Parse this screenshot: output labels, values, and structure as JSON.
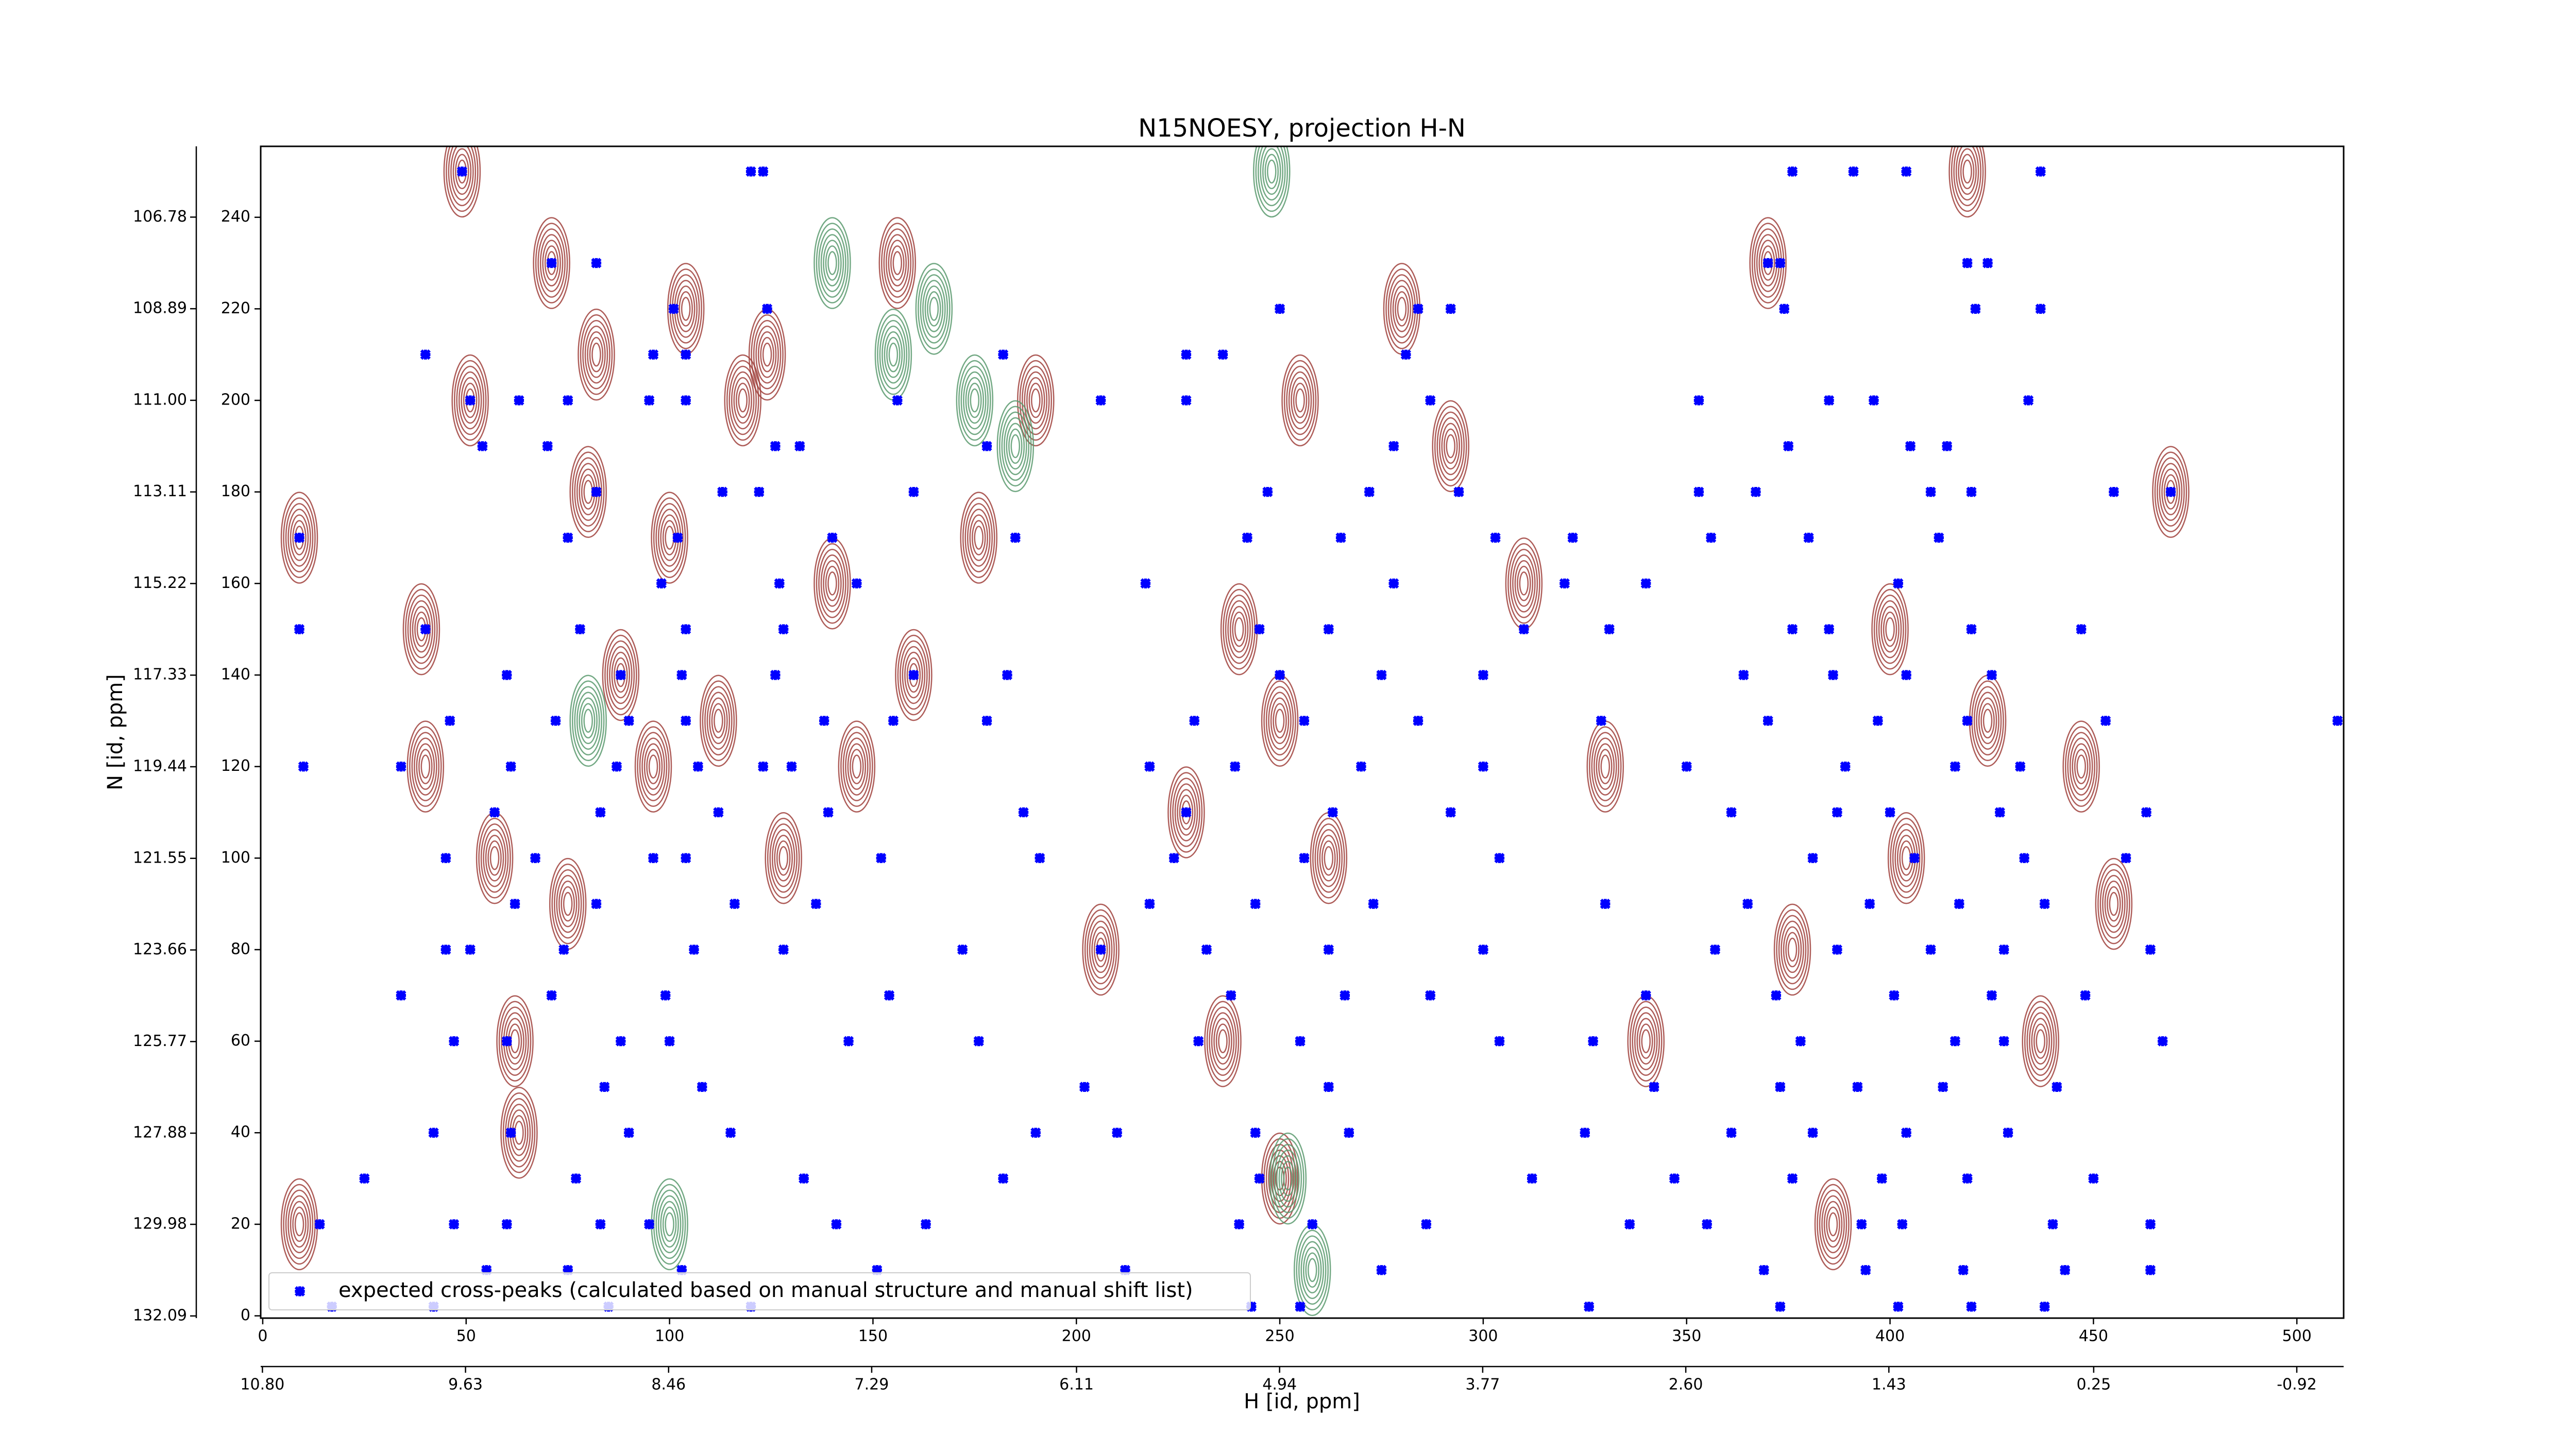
{
  "chart_data": {
    "type": "scatter",
    "title": "N15NOESY, projection H-N",
    "xlabel": "H [id, ppm]",
    "ylabel": "N [id, ppm]",
    "xlim": [
      -0.5,
      511.5
    ],
    "ylim": [
      -0.5,
      255.5
    ],
    "xticks": [
      0,
      50,
      100,
      150,
      200,
      250,
      300,
      350,
      400,
      450,
      500
    ],
    "yticks": [
      0,
      20,
      40,
      60,
      80,
      100,
      120,
      140,
      160,
      180,
      200,
      220,
      240
    ],
    "x2lim": [
      10.81,
      -1.19
    ],
    "x2ticks": [
      {
        "value": 10.8,
        "label": "10.80"
      },
      9.63,
      8.46,
      7.29,
      6.11,
      4.94,
      3.77,
      {
        "value": 2.6,
        "label": "2.60"
      },
      1.43,
      0.25,
      -0.92
    ],
    "y2lim": [
      132.14,
      105.15
    ],
    "y2ticks": [
      132.09,
      129.98,
      127.88,
      125.77,
      123.66,
      121.55,
      119.44,
      117.33,
      115.22,
      113.11,
      {
        "value": 111,
        "label": "111.00"
      },
      108.89,
      106.78
    ],
    "legend": "lower left",
    "series": [
      {
        "name": "expected cross-peaks (calculated based on manual structure and manual shift list)",
        "color": "#0000ff",
        "x": [
          49,
          120,
          123,
          376,
          391,
          404,
          437,
          71,
          82,
          370,
          373,
          419,
          424,
          101,
          124,
          250,
          284,
          292,
          374,
          421,
          437,
          40,
          96,
          104,
          182,
          227,
          236,
          281,
          51,
          63,
          75,
          95,
          104,
          156,
          206,
          227,
          287,
          353,
          385,
          396,
          434,
          54,
          70,
          126,
          132,
          178,
          278,
          375,
          405,
          414,
          82,
          113,
          122,
          160,
          247,
          272,
          294,
          353,
          367,
          410,
          420,
          455,
          469,
          9,
          75,
          102,
          140,
          185,
          242,
          265,
          303,
          322,
          356,
          380,
          412,
          98,
          127,
          146,
          217,
          278,
          320,
          340,
          402,
          9,
          40,
          78,
          104,
          128,
          245,
          262,
          310,
          331,
          376,
          385,
          420,
          447,
          60,
          88,
          103,
          126,
          160,
          183,
          250,
          275,
          300,
          364,
          386,
          404,
          425,
          46,
          72,
          90,
          104,
          138,
          155,
          178,
          229,
          256,
          284,
          329,
          370,
          397,
          419,
          453,
          510,
          10,
          34,
          61,
          87,
          107,
          123,
          130,
          218,
          239,
          270,
          300,
          350,
          389,
          416,
          432,
          57,
          83,
          112,
          139,
          187,
          227,
          263,
          292,
          361,
          387,
          400,
          427,
          463,
          45,
          67,
          96,
          104,
          152,
          191,
          224,
          256,
          304,
          381,
          406,
          433,
          458,
          62,
          82,
          116,
          136,
          218,
          244,
          273,
          330,
          365,
          395,
          417,
          438,
          45,
          51,
          74,
          106,
          128,
          172,
          206,
          232,
          262,
          300,
          357,
          387,
          410,
          428,
          464,
          34,
          71,
          99,
          154,
          238,
          266,
          287,
          340,
          372,
          401,
          425,
          448,
          47,
          60,
          88,
          100,
          144,
          176,
          230,
          255,
          304,
          327,
          378,
          416,
          428,
          467,
          84,
          108,
          202,
          262,
          342,
          373,
          392,
          413,
          441,
          42,
          61,
          90,
          115,
          190,
          210,
          244,
          267,
          325,
          361,
          381,
          404,
          429,
          25,
          77,
          133,
          182,
          245,
          312,
          347,
          376,
          398,
          419,
          450,
          14,
          47,
          60,
          83,
          95,
          141,
          163,
          240,
          258,
          286,
          336,
          355,
          393,
          403,
          440,
          464,
          55,
          75,
          103,
          151,
          212,
          275,
          369,
          394,
          418,
          443,
          464,
          17,
          42,
          85,
          120,
          243,
          255,
          326,
          373,
          402,
          420,
          438
        ],
        "values": [
          250,
          250,
          250,
          250,
          250,
          250,
          250,
          230,
          230,
          230,
          230,
          230,
          230,
          220,
          220,
          220,
          220,
          220,
          220,
          220,
          220,
          210,
          210,
          210,
          210,
          210,
          210,
          210,
          200,
          200,
          200,
          200,
          200,
          200,
          200,
          200,
          200,
          200,
          200,
          200,
          200,
          190,
          190,
          190,
          190,
          190,
          190,
          190,
          190,
          190,
          180,
          180,
          180,
          180,
          180,
          180,
          180,
          180,
          180,
          180,
          180,
          180,
          180,
          170,
          170,
          170,
          170,
          170,
          170,
          170,
          170,
          170,
          170,
          170,
          170,
          160,
          160,
          160,
          160,
          160,
          160,
          160,
          160,
          150,
          150,
          150,
          150,
          150,
          150,
          150,
          150,
          150,
          150,
          150,
          150,
          150,
          140,
          140,
          140,
          140,
          140,
          140,
          140,
          140,
          140,
          140,
          140,
          140,
          140,
          130,
          130,
          130,
          130,
          130,
          130,
          130,
          130,
          130,
          130,
          130,
          130,
          130,
          130,
          130,
          130,
          120,
          120,
          120,
          120,
          120,
          120,
          120,
          120,
          120,
          120,
          120,
          120,
          120,
          120,
          120,
          110,
          110,
          110,
          110,
          110,
          110,
          110,
          110,
          110,
          110,
          110,
          110,
          110,
          100,
          100,
          100,
          100,
          100,
          100,
          100,
          100,
          100,
          100,
          100,
          100,
          100,
          90,
          90,
          90,
          90,
          90,
          90,
          90,
          90,
          90,
          90,
          90,
          90,
          80,
          80,
          80,
          80,
          80,
          80,
          80,
          80,
          80,
          80,
          80,
          80,
          80,
          80,
          80,
          70,
          70,
          70,
          70,
          70,
          70,
          70,
          70,
          70,
          70,
          70,
          70,
          60,
          60,
          60,
          60,
          60,
          60,
          60,
          60,
          60,
          60,
          60,
          60,
          60,
          60,
          50,
          50,
          50,
          50,
          50,
          50,
          50,
          50,
          50,
          40,
          40,
          40,
          40,
          40,
          40,
          40,
          40,
          40,
          40,
          40,
          40,
          40,
          30,
          30,
          30,
          30,
          30,
          30,
          30,
          30,
          30,
          30,
          30,
          20,
          20,
          20,
          20,
          20,
          20,
          20,
          20,
          20,
          20,
          20,
          20,
          20,
          20,
          20,
          20,
          10,
          10,
          10,
          10,
          10,
          10,
          10,
          10,
          10,
          10,
          10,
          2,
          2,
          2,
          2,
          2,
          2,
          2,
          2,
          2,
          2,
          2
        ]
      }
    ],
    "contours": [
      {
        "color": "#a0413c",
        "x": [
          9,
          9,
          39,
          40,
          49,
          51,
          57,
          62,
          63,
          71,
          75,
          80,
          82,
          88,
          96,
          100,
          104,
          112,
          118,
          124,
          128,
          140,
          146,
          156,
          160,
          176,
          190,
          206,
          227,
          236,
          240,
          250,
          262,
          280,
          292,
          310,
          330,
          340,
          370,
          376,
          386,
          400,
          404,
          419,
          424,
          437,
          447,
          455,
          469,
          250,
          255
        ],
        "values": [
          170,
          20,
          150,
          120,
          250,
          200,
          100,
          60,
          40,
          230,
          90,
          180,
          210,
          140,
          120,
          170,
          220,
          130,
          200,
          210,
          100,
          160,
          120,
          230,
          140,
          170,
          200,
          80,
          110,
          60,
          150,
          130,
          100,
          220,
          190,
          160,
          120,
          60,
          230,
          80,
          20,
          150,
          100,
          250,
          130,
          60,
          120,
          90,
          180,
          30,
          200
        ]
      },
      {
        "color": "#5a9a6e",
        "x": [
          140,
          155,
          165,
          175,
          185,
          248,
          252,
          258,
          80,
          100
        ],
        "values": [
          230,
          210,
          220,
          200,
          190,
          250,
          30,
          10,
          130,
          20
        ]
      }
    ]
  }
}
